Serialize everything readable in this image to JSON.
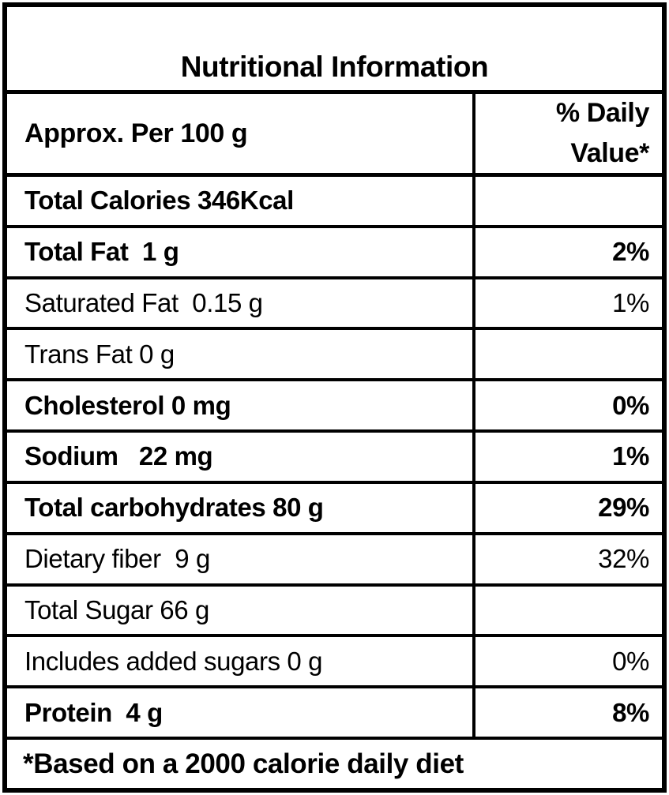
{
  "table": {
    "title": "Nutritional Information",
    "header": {
      "serving_label": "Approx. Per 100 g",
      "daily_value_label": "% Daily Value*"
    },
    "rows": [
      {
        "label": "Total Calories 346Kcal",
        "daily_value": "",
        "bold": true
      },
      {
        "label": "Total Fat  1 g",
        "daily_value": "2%",
        "bold": true
      },
      {
        "label": "Saturated Fat  0.15 g",
        "daily_value": "1%",
        "bold": false
      },
      {
        "label": "Trans Fat 0 g",
        "daily_value": "",
        "bold": false
      },
      {
        "label": "Cholesterol 0 mg",
        "daily_value": "0%",
        "bold": true
      },
      {
        "label": "Sodium   22 mg",
        "daily_value": "1%",
        "bold": true
      },
      {
        "label": "Total carbohydrates 80 g",
        "daily_value": "29%",
        "bold": true
      },
      {
        "label": "Dietary fiber  9 g",
        "daily_value": "32%",
        "bold": false
      },
      {
        "label": "Total Sugar 66 g",
        "daily_value": "",
        "bold": false
      },
      {
        "label": "Includes added sugars 0 g",
        "daily_value": "0%",
        "bold": false
      },
      {
        "label": "Protein  4 g",
        "daily_value": "8%",
        "bold": true
      }
    ],
    "footnote": "*Based on a 2000 calorie daily diet",
    "colors": {
      "border": "#000000",
      "text": "#000000",
      "background": "#ffffff"
    }
  }
}
